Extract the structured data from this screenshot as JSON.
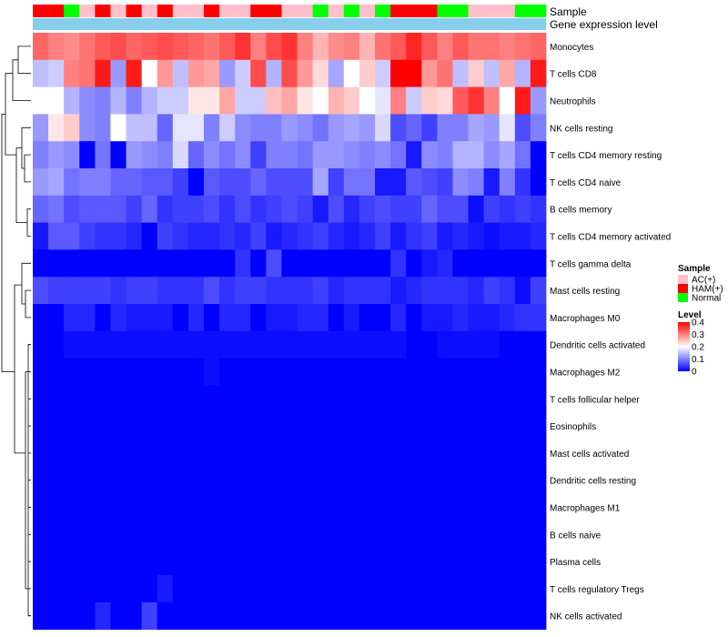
{
  "chart_data": {
    "type": "heatmap",
    "title": "",
    "annotation_tracks": [
      {
        "name": "Sample",
        "values": [
          "HAM(+)",
          "HAM(+)",
          "Normal",
          "AC(+)",
          "HAM(+)",
          "AC(+)",
          "HAM(+)",
          "AC(+)",
          "HAM(+)",
          "AC(+)",
          "AC(+)",
          "HAM(+)",
          "AC(+)",
          "AC(+)",
          "HAM(+)",
          "HAM(+)",
          "AC(+)",
          "AC(+)",
          "Normal",
          "AC(+)",
          "Normal",
          "AC(+)",
          "Normal",
          "HAM(+)",
          "HAM(+)",
          "HAM(+)",
          "Normal",
          "Normal",
          "AC(+)",
          "AC(+)",
          "AC(+)",
          "Normal",
          "Normal"
        ]
      },
      {
        "name": "Gene expression level",
        "values": [
          "",
          "",
          "",
          "",
          "",
          "",
          "",
          "",
          "",
          "",
          "",
          "",
          "",
          "",
          "",
          "",
          "",
          "",
          "",
          "",
          "",
          "",
          "",
          "",
          "",
          "",
          "",
          "",
          "",
          "",
          "",
          "",
          ""
        ]
      }
    ],
    "rows": [
      "Monocytes",
      "T cells CD8",
      "Neutrophils",
      "NK cells resting",
      "T cells CD4 memory resting",
      "T cells CD4 naive",
      "B cells memory",
      "T cells CD4 memory activated",
      "T cells gamma delta",
      "Mast cells resting",
      "Macrophages M0",
      "Dendritic cells activated",
      "Macrophages M2",
      "T cells follicular helper",
      "Eosinophils",
      "Mast cells activated",
      "Dendritic cells resting",
      "Macrophages M1",
      "B cells naive",
      "Plasma cells",
      "T cells regulatory  Tregs",
      "NK cells activated"
    ],
    "n_columns": 33,
    "values": [
      [
        0.32,
        0.3,
        0.29,
        0.31,
        0.33,
        0.34,
        0.32,
        0.33,
        0.34,
        0.33,
        0.32,
        0.31,
        0.33,
        0.36,
        0.3,
        0.34,
        0.36,
        0.3,
        0.26,
        0.29,
        0.3,
        0.26,
        0.31,
        0.33,
        0.37,
        0.33,
        0.3,
        0.33,
        0.31,
        0.31,
        0.3,
        0.31,
        0.32
      ],
      [
        0.15,
        0.16,
        0.3,
        0.31,
        0.38,
        0.12,
        0.38,
        0.2,
        0.28,
        0.15,
        0.28,
        0.27,
        0.12,
        0.16,
        0.34,
        0.14,
        0.34,
        0.28,
        0.23,
        0.13,
        0.2,
        0.24,
        0.16,
        0.4,
        0.41,
        0.28,
        0.31,
        0.15,
        0.24,
        0.15,
        0.27,
        0.14,
        0.38
      ],
      [
        0.2,
        0.2,
        0.14,
        0.11,
        0.1,
        0.14,
        0.1,
        0.14,
        0.16,
        0.16,
        0.22,
        0.22,
        0.27,
        0.16,
        0.16,
        0.25,
        0.27,
        0.22,
        0.2,
        0.26,
        0.24,
        0.2,
        0.18,
        0.3,
        0.16,
        0.24,
        0.23,
        0.33,
        0.36,
        0.3,
        0.2,
        0.38,
        0.12
      ],
      [
        0.12,
        0.22,
        0.24,
        0.11,
        0.1,
        0.2,
        0.15,
        0.15,
        0.08,
        0.18,
        0.18,
        0.1,
        0.16,
        0.11,
        0.1,
        0.1,
        0.12,
        0.11,
        0.09,
        0.12,
        0.13,
        0.12,
        0.17,
        0.06,
        0.08,
        0.05,
        0.1,
        0.1,
        0.13,
        0.12,
        0.18,
        0.06,
        0.1
      ],
      [
        0.1,
        0.12,
        0.11,
        0.0,
        0.09,
        0.0,
        0.12,
        0.11,
        0.1,
        0.17,
        0.08,
        0.11,
        0.09,
        0.11,
        0.05,
        0.1,
        0.1,
        0.09,
        0.12,
        0.12,
        0.11,
        0.1,
        0.11,
        0.09,
        0.02,
        0.11,
        0.1,
        0.14,
        0.14,
        0.11,
        0.13,
        0.09,
        0.0
      ],
      [
        0.12,
        0.13,
        0.09,
        0.1,
        0.1,
        0.08,
        0.08,
        0.07,
        0.07,
        0.05,
        0.0,
        0.07,
        0.06,
        0.06,
        0.08,
        0.06,
        0.06,
        0.06,
        0.13,
        0.05,
        0.09,
        0.09,
        0.02,
        0.02,
        0.07,
        0.06,
        0.05,
        0.11,
        0.1,
        0.02,
        0.1,
        0.04,
        0.0
      ],
      [
        0.08,
        0.09,
        0.06,
        0.07,
        0.07,
        0.07,
        0.05,
        0.08,
        0.04,
        0.05,
        0.05,
        0.06,
        0.04,
        0.06,
        0.04,
        0.05,
        0.06,
        0.05,
        0.02,
        0.06,
        0.03,
        0.05,
        0.06,
        0.05,
        0.05,
        0.08,
        0.06,
        0.06,
        0.01,
        0.05,
        0.04,
        0.05,
        0.04
      ],
      [
        0.02,
        0.07,
        0.07,
        0.05,
        0.04,
        0.04,
        0.03,
        0.0,
        0.05,
        0.04,
        0.03,
        0.03,
        0.04,
        0.03,
        0.05,
        0.02,
        0.03,
        0.04,
        0.05,
        0.03,
        0.02,
        0.03,
        0.05,
        0.02,
        0.04,
        0.05,
        0.02,
        0.03,
        0.02,
        0.01,
        0.02,
        0.02,
        0.03
      ],
      [
        0.0,
        0.0,
        0.0,
        0.0,
        0.0,
        0.0,
        0.0,
        0.0,
        0.0,
        0.0,
        0.0,
        0.0,
        0.0,
        0.04,
        0.0,
        0.06,
        0.0,
        0.0,
        0.0,
        0.0,
        0.0,
        0.0,
        0.0,
        0.04,
        0.0,
        0.02,
        0.03,
        0.0,
        0.0,
        0.0,
        0.0,
        0.0,
        0.0
      ],
      [
        0.06,
        0.05,
        0.05,
        0.05,
        0.05,
        0.04,
        0.05,
        0.05,
        0.04,
        0.04,
        0.04,
        0.06,
        0.04,
        0.05,
        0.05,
        0.04,
        0.04,
        0.04,
        0.05,
        0.03,
        0.04,
        0.04,
        0.04,
        0.02,
        0.03,
        0.04,
        0.04,
        0.04,
        0.03,
        0.05,
        0.04,
        0.01,
        0.05
      ],
      [
        0.0,
        0.0,
        0.03,
        0.03,
        0.0,
        0.03,
        0.02,
        0.02,
        0.02,
        0.0,
        0.03,
        0.0,
        0.03,
        0.03,
        0.0,
        0.02,
        0.02,
        0.03,
        0.03,
        0.0,
        0.02,
        0.0,
        0.0,
        0.03,
        0.0,
        0.02,
        0.02,
        0.03,
        0.02,
        0.02,
        0.03,
        0.04,
        0.04
      ],
      [
        0.0,
        0.0,
        0.01,
        0.01,
        0.01,
        0.01,
        0.01,
        0.01,
        0.01,
        0.01,
        0.01,
        0.01,
        0.01,
        0.01,
        0.01,
        0.01,
        0.01,
        0.01,
        0.01,
        0.01,
        0.01,
        0.01,
        0.01,
        0.01,
        0.0,
        0.0,
        0.01,
        0.01,
        0.01,
        0.01,
        0.0,
        0.0,
        0.0
      ],
      [
        0.0,
        0.0,
        0.0,
        0.0,
        0.0,
        0.0,
        0.0,
        0.0,
        0.0,
        0.0,
        0.0,
        0.01,
        0.0,
        0.0,
        0.0,
        0.0,
        0.0,
        0.0,
        0.0,
        0.0,
        0.0,
        0.0,
        0.0,
        0.0,
        0.0,
        0.0,
        0.0,
        0.0,
        0.0,
        0.0,
        0.0,
        0.0,
        0.0
      ],
      [
        0.0,
        0.0,
        0.0,
        0.0,
        0.0,
        0.0,
        0.0,
        0.0,
        0.0,
        0.0,
        0.0,
        0.0,
        0.0,
        0.0,
        0.0,
        0.0,
        0.0,
        0.0,
        0.0,
        0.0,
        0.0,
        0.0,
        0.0,
        0.0,
        0.0,
        0.0,
        0.0,
        0.0,
        0.0,
        0.0,
        0.0,
        0.0,
        0.0
      ],
      [
        0.0,
        0.0,
        0.0,
        0.0,
        0.0,
        0.0,
        0.0,
        0.0,
        0.0,
        0.0,
        0.0,
        0.0,
        0.0,
        0.0,
        0.0,
        0.0,
        0.0,
        0.0,
        0.0,
        0.0,
        0.0,
        0.0,
        0.0,
        0.0,
        0.0,
        0.0,
        0.0,
        0.0,
        0.0,
        0.0,
        0.0,
        0.0,
        0.0
      ],
      [
        0.0,
        0.0,
        0.0,
        0.0,
        0.0,
        0.0,
        0.0,
        0.0,
        0.0,
        0.0,
        0.0,
        0.0,
        0.0,
        0.0,
        0.0,
        0.0,
        0.0,
        0.0,
        0.0,
        0.0,
        0.0,
        0.0,
        0.0,
        0.0,
        0.0,
        0.0,
        0.0,
        0.0,
        0.0,
        0.0,
        0.0,
        0.0,
        0.0
      ],
      [
        0.0,
        0.0,
        0.0,
        0.0,
        0.0,
        0.0,
        0.0,
        0.0,
        0.0,
        0.0,
        0.0,
        0.0,
        0.0,
        0.0,
        0.0,
        0.0,
        0.0,
        0.0,
        0.0,
        0.0,
        0.0,
        0.0,
        0.0,
        0.0,
        0.0,
        0.0,
        0.0,
        0.0,
        0.0,
        0.0,
        0.0,
        0.0,
        0.0
      ],
      [
        0.0,
        0.0,
        0.0,
        0.0,
        0.0,
        0.0,
        0.0,
        0.0,
        0.0,
        0.0,
        0.0,
        0.0,
        0.0,
        0.0,
        0.0,
        0.0,
        0.0,
        0.0,
        0.0,
        0.0,
        0.0,
        0.0,
        0.0,
        0.0,
        0.0,
        0.0,
        0.0,
        0.0,
        0.0,
        0.0,
        0.0,
        0.0,
        0.0
      ],
      [
        0.0,
        0.0,
        0.0,
        0.0,
        0.0,
        0.0,
        0.0,
        0.0,
        0.0,
        0.0,
        0.0,
        0.0,
        0.0,
        0.0,
        0.0,
        0.0,
        0.0,
        0.0,
        0.0,
        0.0,
        0.0,
        0.0,
        0.0,
        0.0,
        0.0,
        0.0,
        0.0,
        0.0,
        0.0,
        0.0,
        0.0,
        0.0,
        0.0
      ],
      [
        0.0,
        0.0,
        0.0,
        0.0,
        0.0,
        0.0,
        0.0,
        0.0,
        0.0,
        0.0,
        0.0,
        0.0,
        0.0,
        0.0,
        0.0,
        0.0,
        0.0,
        0.0,
        0.0,
        0.0,
        0.0,
        0.0,
        0.0,
        0.0,
        0.0,
        0.0,
        0.0,
        0.0,
        0.0,
        0.0,
        0.0,
        0.0,
        0.0
      ],
      [
        0.0,
        0.0,
        0.0,
        0.0,
        0.0,
        0.0,
        0.0,
        0.0,
        0.02,
        0.0,
        0.0,
        0.0,
        0.0,
        0.0,
        0.0,
        0.0,
        0.0,
        0.0,
        0.0,
        0.0,
        0.0,
        0.0,
        0.0,
        0.0,
        0.0,
        0.0,
        0.0,
        0.0,
        0.0,
        0.0,
        0.0,
        0.0,
        0.0
      ],
      [
        0.0,
        0.0,
        0.0,
        0.0,
        0.03,
        0.0,
        0.0,
        0.05,
        0.0,
        0.0,
        0.0,
        0.0,
        0.0,
        0.0,
        0.0,
        0.0,
        0.0,
        0.0,
        0.0,
        0.0,
        0.0,
        0.0,
        0.0,
        0.0,
        0.0,
        0.0,
        0.0,
        0.0,
        0.0,
        0.0,
        0.0,
        0.0,
        0.0
      ]
    ],
    "legend": {
      "sample_title": "Sample",
      "sample_levels": [
        {
          "label": "AC(+)",
          "color": "#ffc0cb"
        },
        {
          "label": "HAM(+)",
          "color": "#ff0000"
        },
        {
          "label": "Normal",
          "color": "#00ff00"
        }
      ],
      "level_title": "Level",
      "level_ticks": [
        "0.4",
        "0.3",
        "0.2",
        "0.1",
        "0"
      ],
      "level_range": [
        0,
        0.4
      ]
    },
    "colors": {
      "low": "#0000ff",
      "mid": "#ffffff",
      "high": "#ff0000",
      "gene_expression_track": "#87ceeb"
    }
  }
}
